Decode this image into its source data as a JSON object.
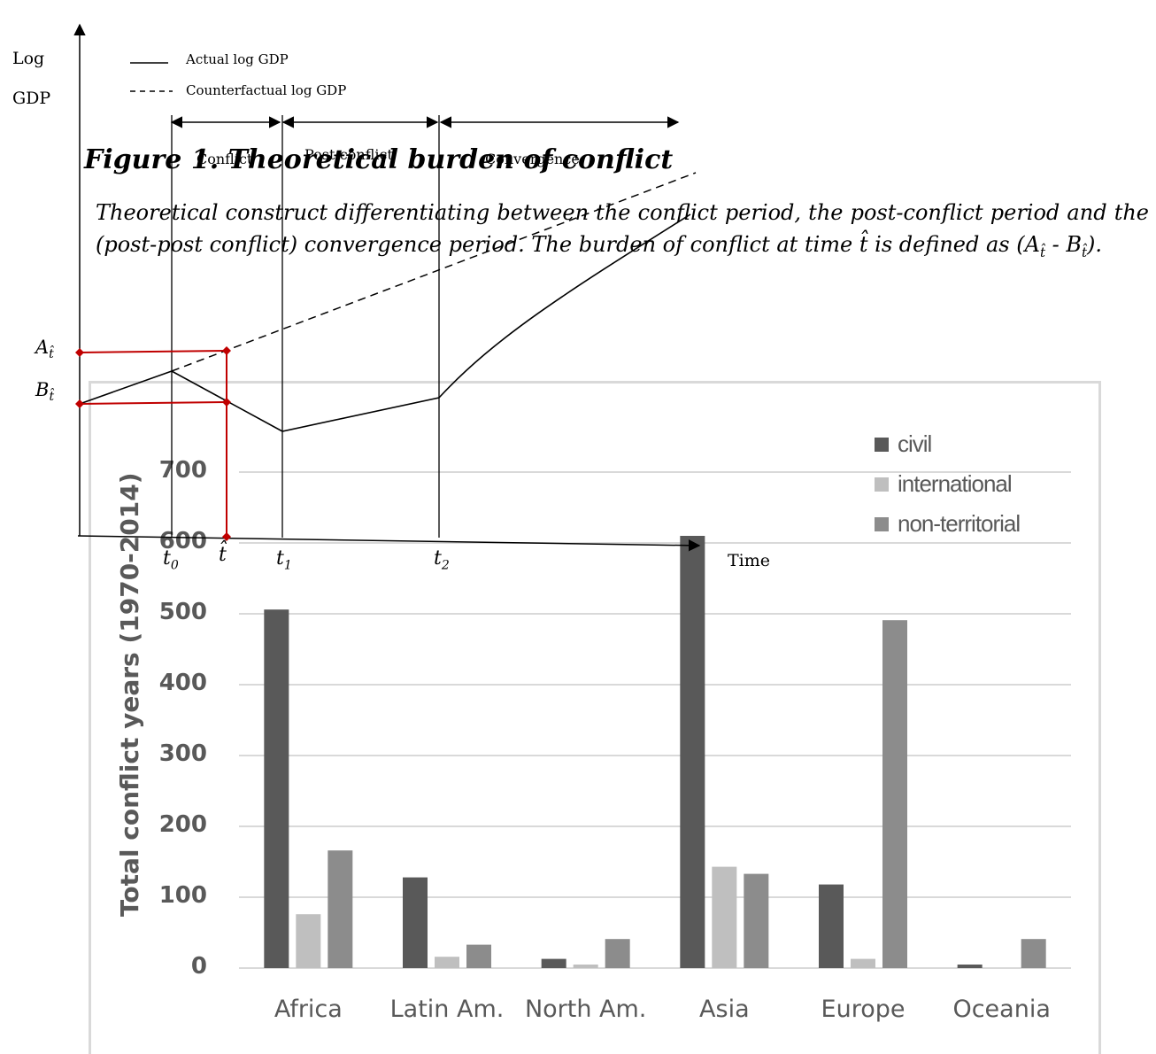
{
  "theory": {
    "y_axis_label_line1": "Log",
    "y_axis_label_line2": "GDP",
    "x_axis_label": "Time",
    "legend_actual": "Actual log GDP",
    "legend_counterfactual": "Counterfactual log GDP",
    "period_conflict": "Conflict",
    "period_post_conflict": "Post-conflict",
    "period_convergence": "Convergence",
    "tick_t0": "t",
    "tick_t0_sub": "0",
    "tick_that": "t̂",
    "tick_t1": "t",
    "tick_t1_sub": "1",
    "tick_t2": "t",
    "tick_t2_sub": "2",
    "label_A": "A",
    "label_A_sub": "t̂",
    "label_B": "B",
    "label_B_sub": "t̂",
    "marker_color": "#c00000"
  },
  "figure": {
    "title": "Figure 1. Theoretical burden of conflict",
    "caption_part1": "Theoretical construct differentiating between the conflict period, the post-conflict period and the (post-post conflict) convergence period. The burden of conflict at time t̂ is defined as (",
    "caption_A": "A",
    "caption_A_sub": "t̂",
    "caption_sep": " - ",
    "caption_B": "B",
    "caption_B_sub": "t̂",
    "caption_end": ")."
  },
  "chart_data": {
    "type": "bar",
    "categories": [
      "Africa",
      "Latin Am.",
      "North Am.",
      "Asia",
      "Europe",
      "Oceania"
    ],
    "series": [
      {
        "name": "civil",
        "values": [
          506,
          128,
          13,
          610,
          118,
          5
        ],
        "color": "#595959"
      },
      {
        "name": "international",
        "values": [
          76,
          16,
          5,
          143,
          13,
          0
        ],
        "color": "#bfbfbf"
      },
      {
        "name": "non-territorial",
        "values": [
          166,
          33,
          41,
          133,
          491,
          41
        ],
        "color": "#8c8c8c"
      }
    ],
    "ylabel": "Total conflict years (1970-2014)",
    "yticks": [
      "0",
      "100",
      "200",
      "300",
      "400",
      "500",
      "600",
      "700"
    ],
    "ylim": [
      0,
      700
    ],
    "grid": true,
    "legend": "top-right"
  }
}
